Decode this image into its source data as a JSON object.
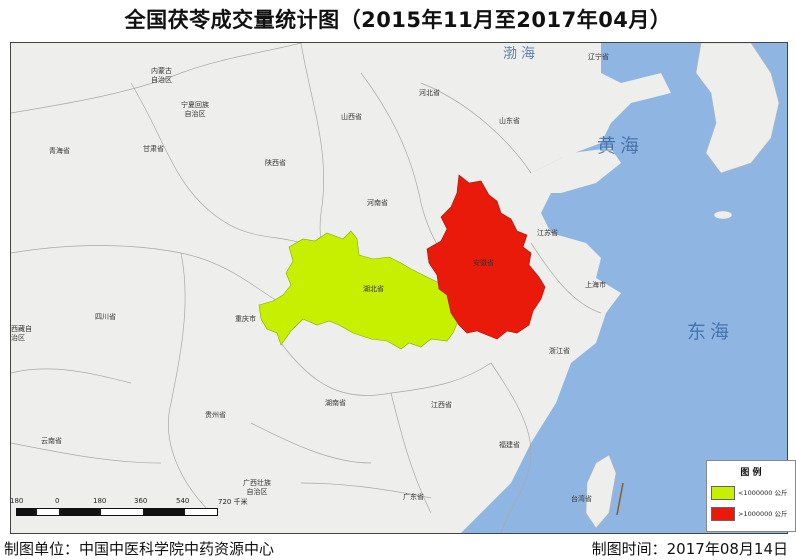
{
  "title": "全国茯苓成交量统计图（2015年11月至2017年04月）",
  "colors": {
    "land": "#eeeeec",
    "sea": "#8fb6e3",
    "hubei": "#c6f000",
    "anhui": "#ea1a0b",
    "border": "#9a9a9a"
  },
  "province_labels": [
    "内蒙古\n自治区",
    "宁夏回族\n自治区",
    "河北省",
    "辽宁省",
    "山西省",
    "山东省",
    "青海省",
    "甘肃省",
    "陕西省",
    "河南省",
    "江苏省",
    "安徽省",
    "湖北省",
    "上海市",
    "四川省",
    "重庆市",
    "浙江省",
    "湖南省",
    "江西省",
    "贵州省",
    "云南省",
    "福建省",
    "广西壮族\n自治区",
    "广东省",
    "台湾省",
    "西藏自\n治区"
  ],
  "seas": [
    "黄海",
    "东海",
    "渤海"
  ],
  "legend": {
    "title": "图 例",
    "items": [
      {
        "label": "<1000000 公斤",
        "color": "#c6f000"
      },
      {
        "label": ">1000000 公斤",
        "color": "#ea1a0b"
      }
    ]
  },
  "scale": {
    "ticks": [
      "180",
      "0",
      "180",
      "360",
      "540",
      "720 千米"
    ]
  },
  "footer": {
    "left": "制图单位：中国中医科学院中药资源中心",
    "right": "制图时间：2017年08月14日"
  }
}
